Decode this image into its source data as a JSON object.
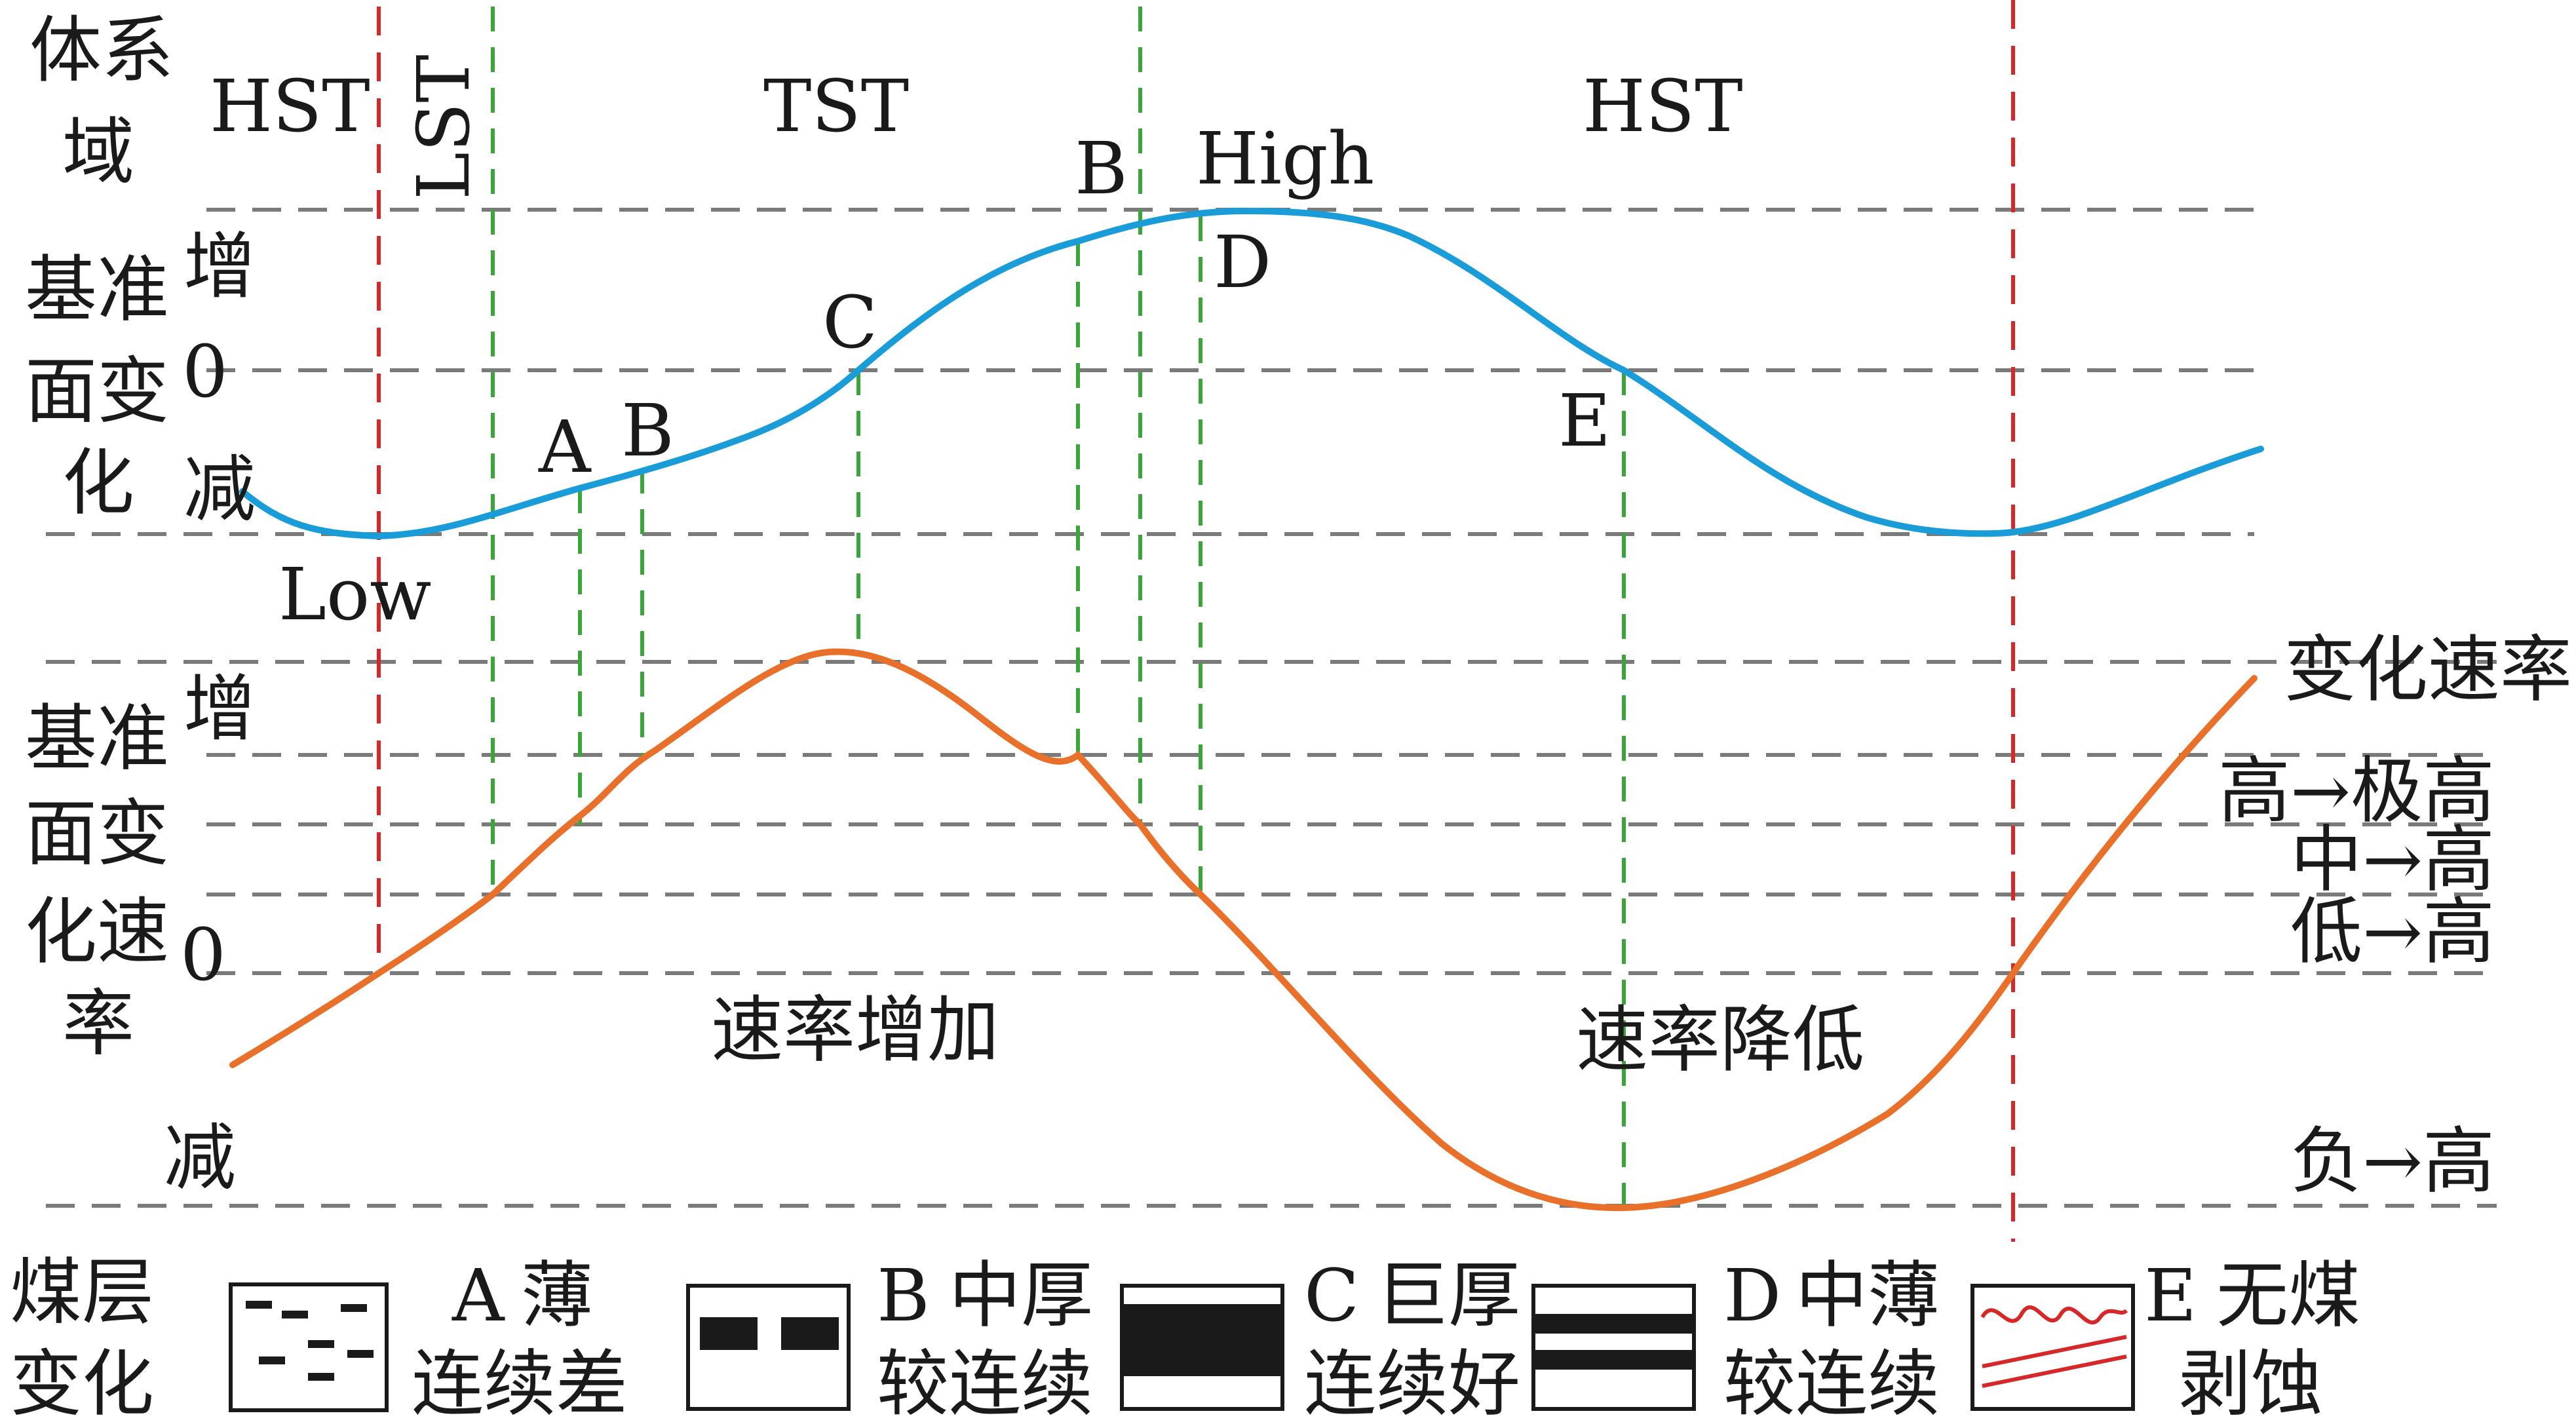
{
  "tracts": {
    "row_label": "体系域",
    "hst_left": "HST",
    "lst": "LST",
    "tst": "TST",
    "hst_right": "HST"
  },
  "baselevel": {
    "row_label": "基准面变化",
    "increase": "增",
    "zero": "0",
    "decrease": "减",
    "low": "Low",
    "high": "High",
    "pt_a": "A",
    "pt_b1": "B",
    "pt_c": "C",
    "pt_b2": "B",
    "pt_d": "D",
    "pt_e": "E"
  },
  "rate": {
    "row_label": "基准面变化速率",
    "increase": "增",
    "zero": "0",
    "decrease": "减",
    "rate_up": "速率增加",
    "rate_down": "速率降低",
    "right_title": "变化速率",
    "level_1": "高→极高",
    "level_2": "中→高",
    "level_3": "低→高",
    "level_4": "负→高"
  },
  "legend": {
    "row_label": "煤层变化",
    "a_letter": "A",
    "a_line1": "薄",
    "a_line2": "连续差",
    "b_letter": "B",
    "b_line1": "中厚",
    "b_line2": "较连续",
    "c_letter": "C",
    "c_line1": "巨厚",
    "c_line2": "连续好",
    "d_letter": "D",
    "d_line1": "中薄",
    "d_line2": "较连续",
    "e_letter": "E",
    "e_line1": "无煤",
    "e_line2": "剥蚀"
  },
  "colors": {
    "baselevel_curve": "#1a9cd8",
    "rate_curve": "#e8702a",
    "boundary_red": "#d62828",
    "marker_green": "#3aa63a",
    "grid_gray": "#7a7a7a",
    "erosion_red": "#d62828"
  }
}
